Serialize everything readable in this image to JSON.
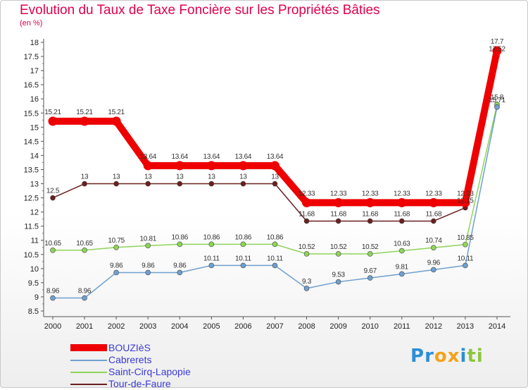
{
  "title": "Evolution du Taux de Taxe Foncière sur les Propriétés Bâties",
  "subtitle": "(en %)",
  "logo": {
    "letters": [
      "P",
      "r",
      "o",
      "x",
      "i",
      "t",
      "i"
    ],
    "colors": [
      "#2b8fd6",
      "#2b8fd6",
      "#f5a21a",
      "#f5a21a",
      "#2b8fd6",
      "#8cc63f",
      "#8cc63f"
    ]
  },
  "chart_data": {
    "type": "line",
    "title": "Evolution du Taux de Taxe Foncière sur les Propriétés Bâties",
    "ylabel": "(en %)",
    "ylim": [
      8.5,
      18
    ],
    "yticks": [
      "8.5",
      "9",
      "9.5",
      "10",
      "10.5",
      "11",
      "11.5",
      "12",
      "12.5",
      "13",
      "13.5",
      "14",
      "14.5",
      "15",
      "15.5",
      "16",
      "16.5",
      "17",
      "17.5",
      "18"
    ],
    "x": [
      "2000",
      "2001",
      "2002",
      "2003",
      "2004",
      "2005",
      "2006",
      "2007",
      "2008",
      "2009",
      "2010",
      "2011",
      "2012",
      "2013",
      "2014"
    ],
    "series": [
      {
        "name": "Tour-de-Faure",
        "color": "#6b1f1f",
        "values": [
          12.5,
          13,
          13,
          13,
          13,
          13,
          13,
          13,
          11.68,
          11.68,
          11.68,
          11.68,
          11.68,
          12.15,
          17.52
        ],
        "labels": [
          "12.5",
          "13",
          "13",
          "13",
          "13",
          "13",
          "13",
          "13",
          "11.68",
          "11.68",
          "11.68",
          "11.68",
          "11.68",
          "12.15",
          "17.52"
        ]
      },
      {
        "name": "Saint-Cirq-Lapopie",
        "color": "#8ed45a",
        "values": [
          10.65,
          10.65,
          10.75,
          10.81,
          10.86,
          10.86,
          10.86,
          10.86,
          10.52,
          10.52,
          10.52,
          10.63,
          10.74,
          10.85,
          15.8
        ],
        "labels": [
          "10.65",
          "10.65",
          "10.75",
          "10.81",
          "10.86",
          "10.86",
          "10.86",
          "10.86",
          "10.52",
          "10.52",
          "10.52",
          "10.63",
          "10.74",
          "10.85",
          "15.8"
        ]
      },
      {
        "name": "Cabrerets",
        "color": "#6f9fcf",
        "values": [
          8.96,
          8.96,
          9.86,
          9.86,
          9.86,
          10.11,
          10.11,
          10.11,
          9.3,
          9.53,
          9.67,
          9.81,
          9.96,
          10.11,
          15.71
        ],
        "labels": [
          "8.96",
          "8.96",
          "9.86",
          "9.86",
          "9.86",
          "10.11",
          "10.11",
          "10.11",
          "9.3",
          "9.53",
          "9.67",
          "9.81",
          "9.96",
          "10.11",
          "15.71"
        ]
      },
      {
        "name": "BOUZIèS",
        "color": "#ee0000",
        "values": [
          15.21,
          15.21,
          15.21,
          13.64,
          13.64,
          13.64,
          13.64,
          13.64,
          12.33,
          12.33,
          12.33,
          12.33,
          12.33,
          12.33,
          17.7
        ],
        "labels": [
          "15.21",
          "15.21",
          "15.21",
          "13.64",
          "13.64",
          "13.64",
          "13.64",
          "13.64",
          "12.33",
          "12.33",
          "12.33",
          "12.33",
          "12.33",
          "12.33",
          "17.7"
        ]
      }
    ],
    "legend": [
      "BOUZIèS",
      "Cabrerets",
      "Saint-Cirq-Lapopie",
      "Tour-de-Faure"
    ],
    "legend_position": "bottom-left",
    "grid": false
  }
}
